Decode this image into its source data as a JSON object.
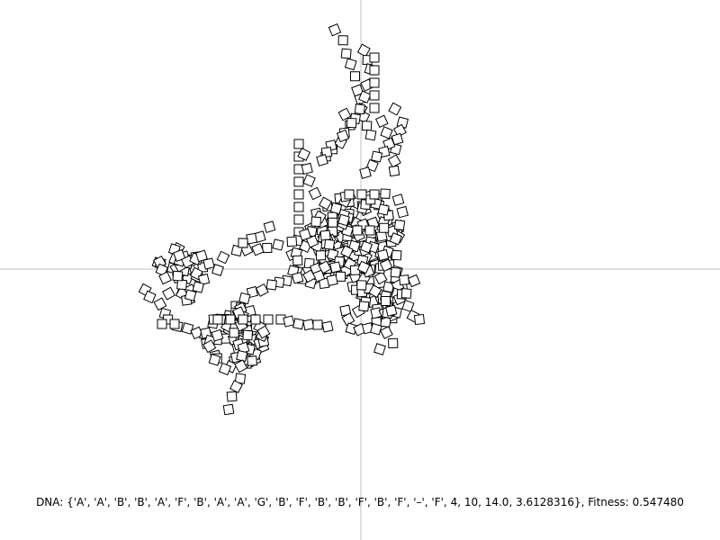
{
  "status": {
    "dna_label": "DNA: ",
    "dna_value": "{'A', 'A', 'B', 'B', 'A', 'F', 'B', 'A', 'A', 'G', 'B', 'F', 'B', 'B', 'F', 'B', 'F', '–', 'F', 4, 10, 14.0, 3.6128316}",
    "fitness_label": ", Fitness: ",
    "fitness_value": "0.547480"
  },
  "colors": {
    "background": "#ffffff",
    "axis": "#c0c0c0",
    "cell_stroke": "#000000"
  }
}
